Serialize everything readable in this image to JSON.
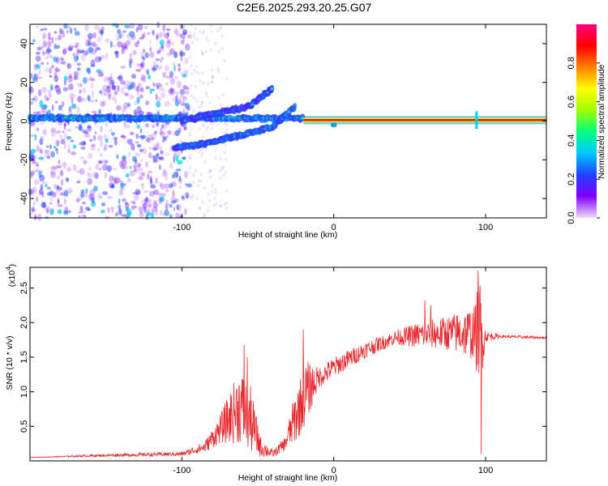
{
  "title": "C2E6.2025.293.20.25.G07",
  "chart_data": [
    {
      "type": "heatmap",
      "name": "spectrogram",
      "xlabel": "Height of straight line (km)",
      "ylabel": "Frequency (Hz)",
      "xlim": [
        -200,
        140
      ],
      "ylim": [
        -50,
        50
      ],
      "xticks": [
        -100,
        0,
        100
      ],
      "xtick_labels": [
        "-100",
        "0",
        "100"
      ],
      "yticks": [
        -40,
        -20,
        0,
        20,
        40
      ],
      "ytick_labels": [
        "-40",
        "-20",
        "0",
        "20",
        "40"
      ],
      "colorbar": {
        "label": "Normalized spectral amplitude",
        "range": [
          0,
          1
        ],
        "ticks": [
          0.0,
          0.2,
          0.4,
          0.6,
          0.8
        ],
        "tick_labels": [
          "0.0",
          "0.2",
          "0.4",
          "0.6",
          "0.8"
        ],
        "colormap": [
          "#f0dcf8",
          "#8000ff",
          "#2040ff",
          "#00c8ff",
          "#00ff80",
          "#a0ff00",
          "#ffff00",
          "#ff8000",
          "#ff0000",
          "#ff0080"
        ]
      },
      "features": [
        {
          "name": "carrier-line-strong",
          "x_range": [
            -20,
            140
          ],
          "frequency": 0.5,
          "amplitude": 0.95
        },
        {
          "name": "carrier-line-weak",
          "x_range": [
            -200,
            -20
          ],
          "frequency": 1.5,
          "amplitude": 0.5
        },
        {
          "name": "lower-rising-branch",
          "points": [
            [
              -105,
              -14
            ],
            [
              -80,
              -11
            ],
            [
              -60,
              -7
            ],
            [
              -40,
              -3
            ],
            [
              -25,
              8
            ]
          ],
          "amplitude": 0.45
        },
        {
          "name": "upper-rising-branch",
          "points": [
            [
              -100,
              0
            ],
            [
              -85,
              3
            ],
            [
              -70,
              5
            ],
            [
              -55,
              8
            ],
            [
              -40,
              17
            ]
          ],
          "amplitude": 0.4
        },
        {
          "name": "noise-region",
          "x_range": [
            -200,
            -95
          ],
          "amplitude": 0.2
        }
      ]
    },
    {
      "type": "line",
      "name": "snr",
      "xlabel": "Height of straight line (km)",
      "ylabel": "SNR (10 * v/v)",
      "y_multiplier": "(x10",
      "y_multiplier_exp": "4",
      "y_multiplier_close": ")",
      "xlim": [
        -200,
        140
      ],
      "ylim": [
        0,
        2.8
      ],
      "xticks": [
        -100,
        0,
        100
      ],
      "xtick_labels": [
        "-100",
        "0",
        "100"
      ],
      "yticks": [
        0.5,
        1.0,
        1.5,
        2.0,
        2.5
      ],
      "ytick_labels": [
        "0.5",
        "1.0",
        "1.5",
        "2.0",
        "2.5"
      ],
      "color": "#e8282d",
      "series": [
        {
          "name": "SNR",
          "envelope": [
            [
              -200,
              0.05,
              0.0
            ],
            [
              -150,
              0.08,
              0.02
            ],
            [
              -100,
              0.1,
              0.03
            ],
            [
              -85,
              0.2,
              0.08
            ],
            [
              -75,
              0.45,
              0.2
            ],
            [
              -62,
              0.8,
              0.55
            ],
            [
              -55,
              0.6,
              0.5
            ],
            [
              -48,
              0.2,
              0.15
            ],
            [
              -40,
              0.1,
              0.05
            ],
            [
              -32,
              0.25,
              0.1
            ],
            [
              -25,
              0.65,
              0.4
            ],
            [
              -18,
              1.0,
              0.45
            ],
            [
              -10,
              1.2,
              0.15
            ],
            [
              0,
              1.35,
              0.15
            ],
            [
              20,
              1.6,
              0.12
            ],
            [
              40,
              1.78,
              0.1
            ],
            [
              55,
              1.82,
              0.18
            ],
            [
              75,
              1.85,
              0.25
            ],
            [
              93,
              1.85,
              0.4
            ],
            [
              96,
              1.8,
              0.9
            ],
            [
              100,
              1.8,
              0.08
            ],
            [
              110,
              1.8,
              0.02
            ],
            [
              140,
              1.78,
              0.02
            ]
          ]
        }
      ],
      "spikes": [
        {
          "x": -59,
          "y": 1.68
        },
        {
          "x": -57,
          "y": 1.5
        },
        {
          "x": -20,
          "y": 1.9
        },
        {
          "x": 60,
          "y": 2.32
        },
        {
          "x": 64,
          "y": 2.25
        },
        {
          "x": 95,
          "y": 2.75
        },
        {
          "x": 97,
          "y": 0.1
        }
      ]
    }
  ]
}
